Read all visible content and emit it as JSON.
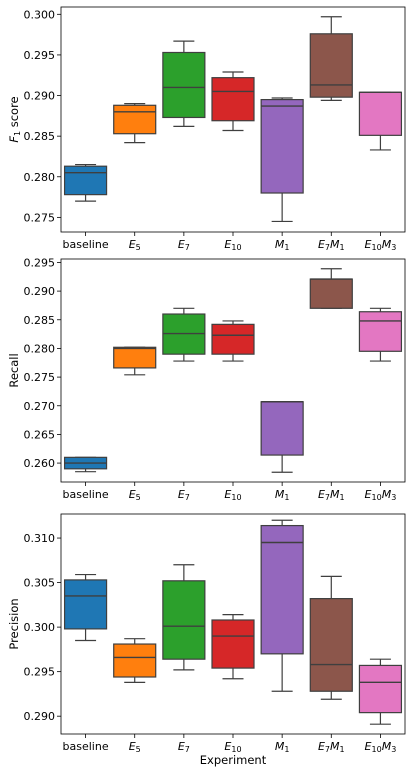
{
  "chart_data": [
    {
      "type": "box",
      "ylabel": "F1 score",
      "ylabel_parts": [
        {
          "t": "F",
          "sub": false
        },
        {
          "t": "1",
          "sub": true
        },
        {
          "t": " score",
          "sub": false
        }
      ],
      "xlabel": "",
      "ylim": [
        0.2732,
        0.3009
      ],
      "yticks": [
        "0.275",
        "0.280",
        "0.285",
        "0.290",
        "0.295",
        "0.300"
      ],
      "boxes": [
        {
          "whislo": 0.277,
          "q1": 0.2778,
          "med": 0.2805,
          "q3": 0.2813,
          "whishi": 0.2815
        },
        {
          "whislo": 0.2842,
          "q1": 0.2853,
          "med": 0.288,
          "q3": 0.2888,
          "whishi": 0.289
        },
        {
          "whislo": 0.2862,
          "q1": 0.2873,
          "med": 0.291,
          "q3": 0.2953,
          "whishi": 0.2967
        },
        {
          "whislo": 0.2857,
          "q1": 0.2869,
          "med": 0.2905,
          "q3": 0.2922,
          "whishi": 0.2929
        },
        {
          "whislo": 0.2745,
          "q1": 0.278,
          "med": 0.2887,
          "q3": 0.2895,
          "whishi": 0.2897
        },
        {
          "whislo": 0.2894,
          "q1": 0.2898,
          "med": 0.2913,
          "q3": 0.2976,
          "whishi": 0.2997
        },
        {
          "whislo": 0.2833,
          "q1": 0.2851,
          "med": 0.2904,
          "q3": 0.2904,
          "whishi": 0.2904
        }
      ]
    },
    {
      "type": "box",
      "ylabel": "Recall",
      "ylabel_parts": [
        {
          "t": "Recall",
          "sub": false
        }
      ],
      "xlabel": "",
      "ylim": [
        0.2567,
        0.2956
      ],
      "yticks": [
        "0.260",
        "0.265",
        "0.270",
        "0.275",
        "0.280",
        "0.285",
        "0.290",
        "0.295"
      ],
      "boxes": [
        {
          "whislo": 0.2585,
          "q1": 0.259,
          "med": 0.26,
          "q3": 0.261,
          "whishi": 0.261
        },
        {
          "whislo": 0.2754,
          "q1": 0.2766,
          "med": 0.28,
          "q3": 0.2802,
          "whishi": 0.2802
        },
        {
          "whislo": 0.2778,
          "q1": 0.279,
          "med": 0.2826,
          "q3": 0.286,
          "whishi": 0.287
        },
        {
          "whislo": 0.2778,
          "q1": 0.279,
          "med": 0.2823,
          "q3": 0.2842,
          "whishi": 0.2848
        },
        {
          "whislo": 0.2584,
          "q1": 0.2614,
          "med": 0.2707,
          "q3": 0.2707,
          "whishi": 0.2707
        },
        {
          "whislo": 0.287,
          "q1": 0.287,
          "med": 0.2921,
          "q3": 0.2921,
          "whishi": 0.2939
        },
        {
          "whislo": 0.2778,
          "q1": 0.2795,
          "med": 0.2848,
          "q3": 0.2864,
          "whishi": 0.287
        }
      ]
    },
    {
      "type": "box",
      "ylabel": "Precision",
      "ylabel_parts": [
        {
          "t": "Precision",
          "sub": false
        }
      ],
      "xlabel": "Experiment",
      "ylim": [
        0.288,
        0.3127
      ],
      "yticks": [
        "0.290",
        "0.295",
        "0.300",
        "0.305",
        "0.310"
      ],
      "boxes": [
        {
          "whislo": 0.2985,
          "q1": 0.2998,
          "med": 0.3035,
          "q3": 0.3053,
          "whishi": 0.3059
        },
        {
          "whislo": 0.2938,
          "q1": 0.2944,
          "med": 0.2966,
          "q3": 0.2981,
          "whishi": 0.2987
        },
        {
          "whislo": 0.2952,
          "q1": 0.2964,
          "med": 0.3001,
          "q3": 0.3052,
          "whishi": 0.307
        },
        {
          "whislo": 0.2942,
          "q1": 0.2954,
          "med": 0.299,
          "q3": 0.3008,
          "whishi": 0.3014
        },
        {
          "whislo": 0.2928,
          "q1": 0.297,
          "med": 0.3095,
          "q3": 0.3114,
          "whishi": 0.312
        },
        {
          "whislo": 0.2919,
          "q1": 0.2928,
          "med": 0.2958,
          "q3": 0.3032,
          "whishi": 0.3057
        },
        {
          "whislo": 0.2891,
          "q1": 0.2904,
          "med": 0.2938,
          "q3": 0.2957,
          "whishi": 0.2964
        }
      ]
    }
  ],
  "categories": [
    {
      "label": "baseline",
      "parts": [
        {
          "t": "baseline",
          "sub": false
        }
      ],
      "color": "#1f77b4"
    },
    {
      "label": "E5",
      "parts": [
        {
          "t": "E",
          "sub": false
        },
        {
          "t": "5",
          "sub": true
        }
      ],
      "color": "#ff7f0e"
    },
    {
      "label": "E7",
      "parts": [
        {
          "t": "E",
          "sub": false
        },
        {
          "t": "7",
          "sub": true
        }
      ],
      "color": "#2ca02c"
    },
    {
      "label": "E10",
      "parts": [
        {
          "t": "E",
          "sub": false
        },
        {
          "t": "10",
          "sub": true
        }
      ],
      "color": "#d62728"
    },
    {
      "label": "M1",
      "parts": [
        {
          "t": "M",
          "sub": false
        },
        {
          "t": "1",
          "sub": true
        }
      ],
      "color": "#9467bd"
    },
    {
      "label": "E7M1",
      "parts": [
        {
          "t": "E",
          "sub": false
        },
        {
          "t": "7",
          "sub": true
        },
        {
          "t": "M",
          "sub": false
        },
        {
          "t": "1",
          "sub": true
        }
      ],
      "color": "#8c564b"
    },
    {
      "label": "E10M3",
      "parts": [
        {
          "t": "E",
          "sub": false
        },
        {
          "t": "10",
          "sub": true
        },
        {
          "t": "M",
          "sub": false
        },
        {
          "t": "3",
          "sub": true
        }
      ],
      "color": "#e377c2"
    }
  ]
}
